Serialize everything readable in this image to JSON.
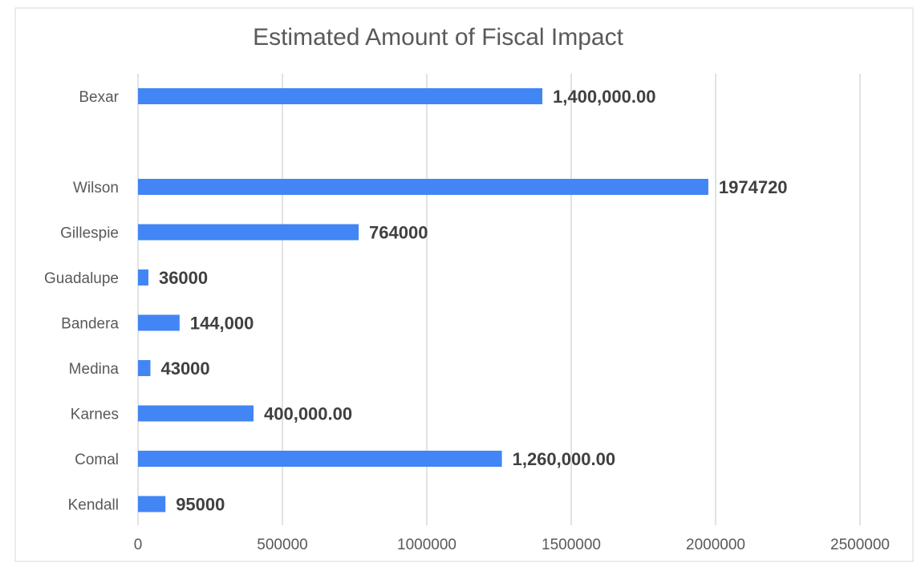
{
  "chart_data": {
    "type": "bar",
    "orientation": "horizontal",
    "title": "Estimated Amount of Fiscal Impact",
    "xlabel": "",
    "ylabel": "",
    "xlim": [
      0,
      2500000
    ],
    "x_ticks": [
      "0",
      "500000",
      "1000000",
      "1500000",
      "2000000",
      "2500000"
    ],
    "grid": "vertical",
    "legend": "none",
    "bar_color": "#4285F4",
    "categories": [
      "Bexar",
      "",
      "Wilson",
      "Gillespie",
      "Guadalupe",
      "Bandera",
      "Medina",
      "Karnes",
      "Comal",
      "Kendall"
    ],
    "values": [
      1400000,
      null,
      1974720,
      764000,
      36000,
      144000,
      43000,
      400000,
      1260000,
      95000
    ],
    "data_labels": [
      "1,400,000.00",
      "",
      "1974720",
      "764000",
      "36000",
      "144,000",
      "43000",
      "400,000.00",
      "1,260,000.00",
      "95000"
    ]
  }
}
